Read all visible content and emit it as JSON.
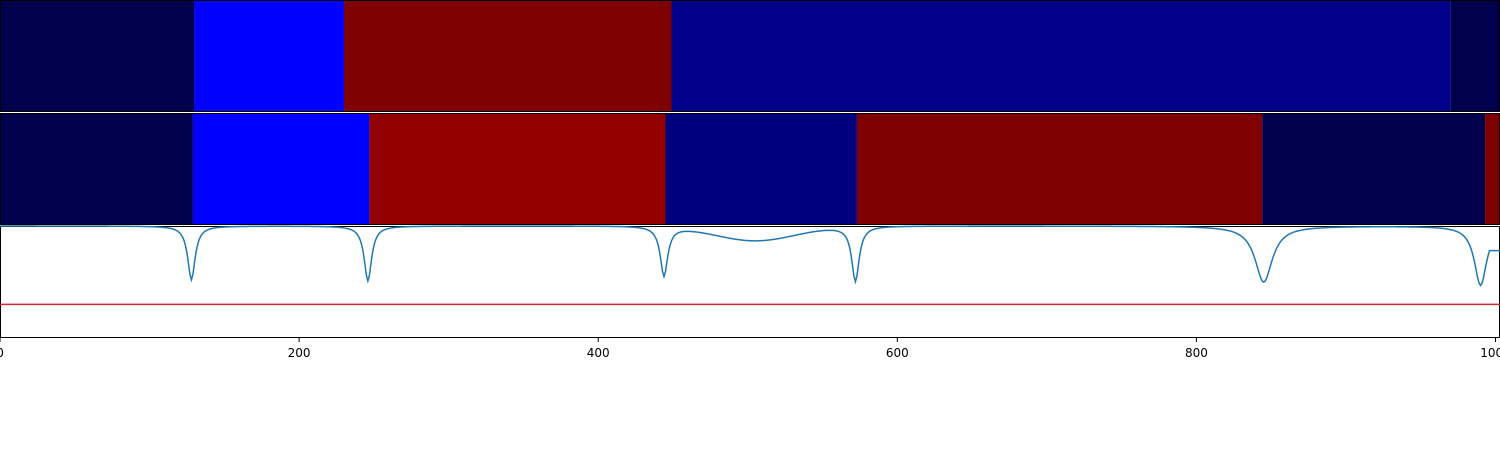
{
  "chart_data": {
    "type": "heatmap",
    "x": {
      "min": 0,
      "max": 1003,
      "ticks": [
        0,
        200,
        400,
        600,
        800,
        1000
      ],
      "tick_labels": [
        "0",
        "200",
        "400",
        "600",
        "800",
        "1000"
      ]
    },
    "tracks": [
      {
        "segments": [
          {
            "start": 0,
            "end": 130,
            "color": "#00004c"
          },
          {
            "start": 130,
            "end": 230,
            "color": "#0000ff"
          },
          {
            "start": 230,
            "end": 449,
            "color": "#7f0000"
          },
          {
            "start": 449,
            "end": 970,
            "color": "#00008b"
          },
          {
            "start": 970,
            "end": 1003,
            "color": "#00004c"
          }
        ]
      },
      {
        "segments": [
          {
            "start": 0,
            "end": 129,
            "color": "#00004c"
          },
          {
            "start": 129,
            "end": 247,
            "color": "#0000ff"
          },
          {
            "start": 247,
            "end": 445,
            "color": "#930000"
          },
          {
            "start": 445,
            "end": 573,
            "color": "#00007f"
          },
          {
            "start": 573,
            "end": 844,
            "color": "#7f0000"
          },
          {
            "start": 844,
            "end": 993,
            "color": "#00004c"
          },
          {
            "start": 993,
            "end": 1003,
            "color": "#7f0000"
          }
        ]
      }
    ],
    "line": {
      "color": "#1f77b4",
      "ylim": [
        0,
        1
      ],
      "baseline": 1.0,
      "dips": [
        {
          "x": 128,
          "depth": 0.48,
          "width": 3
        },
        {
          "x": 246,
          "depth": 0.49,
          "width": 3
        },
        {
          "x": 444,
          "depth": 0.44,
          "width": 3
        },
        {
          "x": 572,
          "depth": 0.49,
          "width": 3
        },
        {
          "x": 845,
          "depth": 0.5,
          "width": 7
        },
        {
          "x": 990,
          "depth": 0.53,
          "width": 5
        }
      ],
      "bumps": [
        {
          "x": 505,
          "depth": 0.13,
          "width": 38
        }
      ],
      "end_value": 0.78
    },
    "threshold": {
      "value": 0.3,
      "color": "#d62728"
    }
  }
}
